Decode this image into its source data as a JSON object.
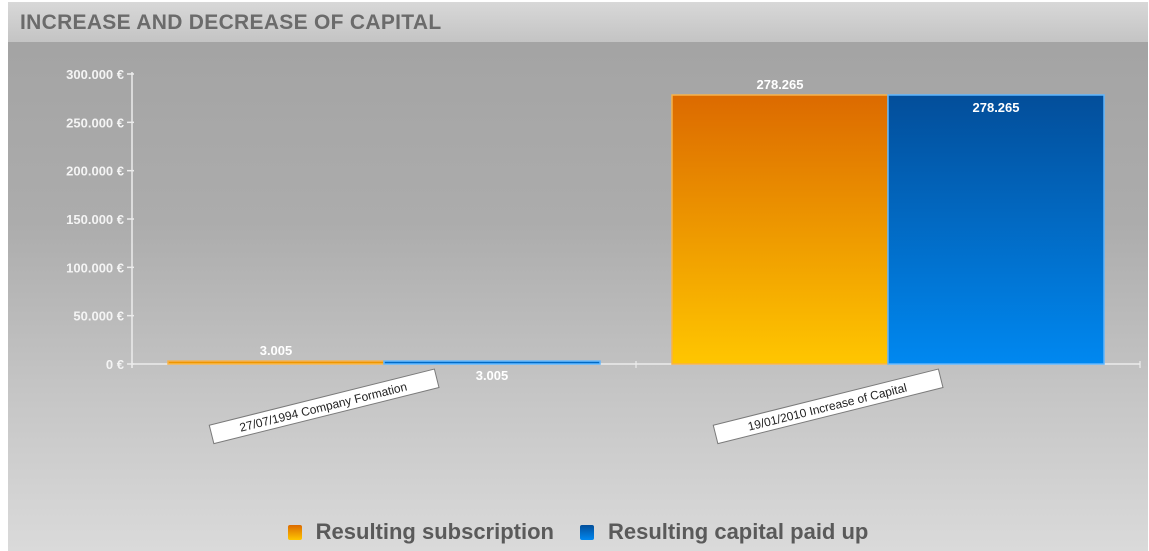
{
  "title": "INCREASE AND DECREASE OF CAPITAL",
  "colors": {
    "subscription_top": "#dc6a00",
    "subscription_bottom": "#ffc600",
    "paidup_top": "#034e9a",
    "paidup_bottom": "#0088f0",
    "axis": "#ececec",
    "label_text": "#ffffff"
  },
  "chart_data": {
    "type": "bar",
    "title": "INCREASE AND DECREASE OF CAPITAL",
    "categories": [
      "27/07/1994 Company Formation",
      "19/01/2010 Increase of Capital"
    ],
    "series": [
      {
        "name": "Resulting subscription",
        "values": [
          3005,
          278265
        ],
        "labels": [
          "3.005",
          "278.265"
        ],
        "color": "#f39a00"
      },
      {
        "name": "Resulting capital paid up",
        "values": [
          3005,
          278265
        ],
        "labels": [
          "3.005",
          "278.265"
        ],
        "color": "#0a6fd0"
      }
    ],
    "ylim": [
      0,
      300000
    ],
    "yticks": [
      0,
      50000,
      100000,
      150000,
      200000,
      250000,
      300000
    ],
    "ytick_labels": [
      "0 €",
      "50.000 €",
      "100.000 €",
      "150.000 €",
      "200.000 €",
      "250.000 €",
      "300.000 €"
    ],
    "grid": false,
    "legend_position": "bottom-center"
  }
}
